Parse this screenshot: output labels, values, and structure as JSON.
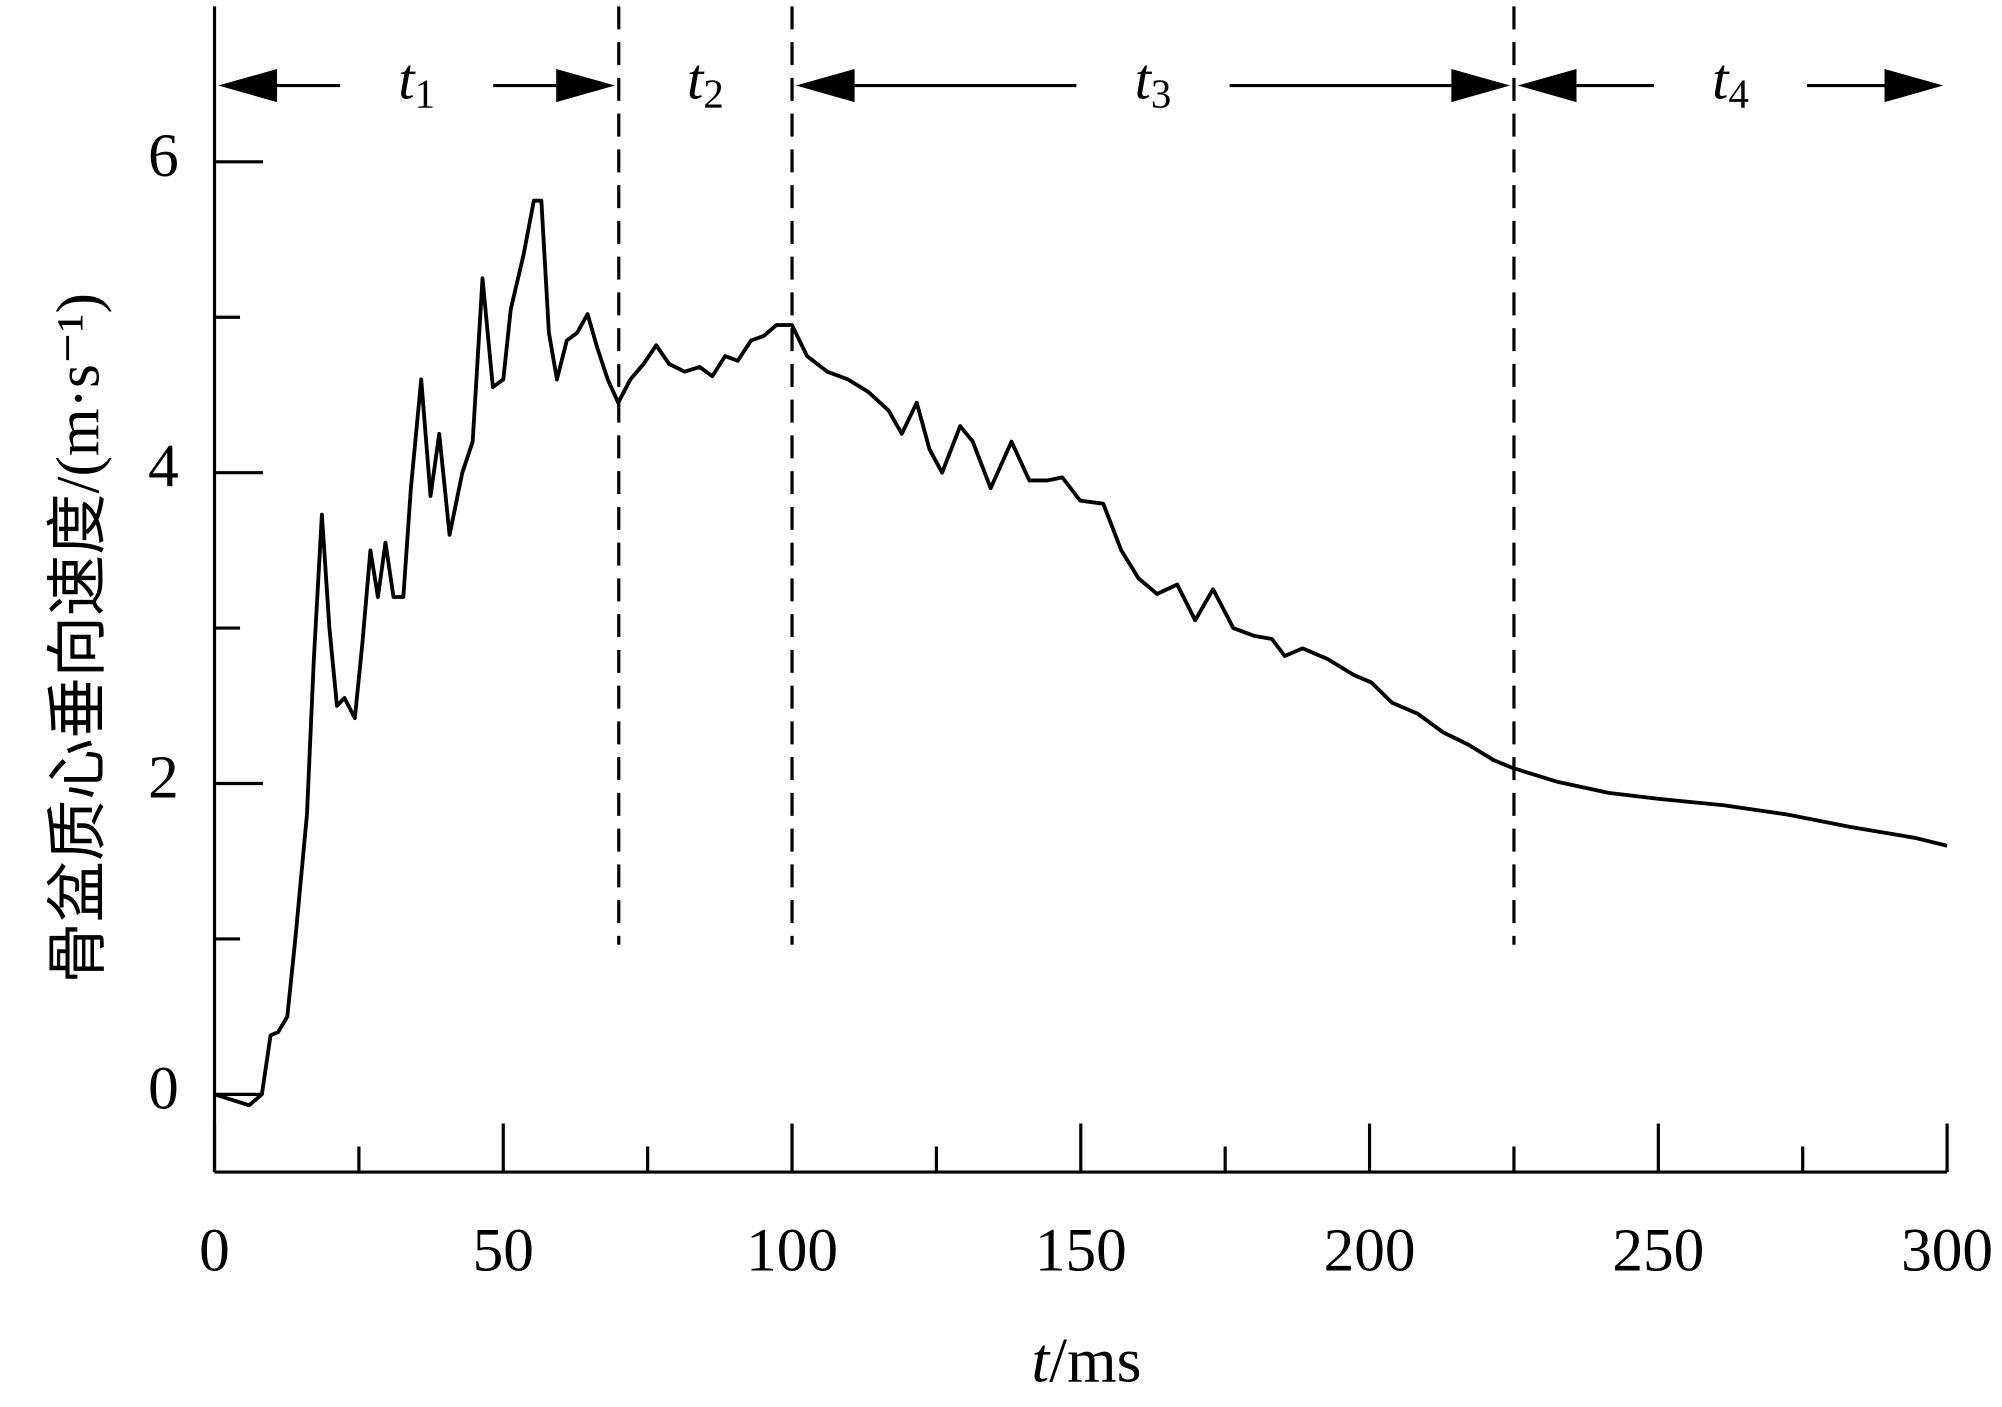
{
  "chart_data": {
    "type": "line",
    "xlabel": "t/ms",
    "ylabel": "骨盆质心垂向速度/(m·s⁻¹)",
    "x": [
      0,
      6,
      8.2,
      9.7,
      11,
      12.6,
      14,
      16,
      17.2,
      18.6,
      19.9,
      21.2,
      22.5,
      24.3,
      25.6,
      27,
      28.3,
      29.6,
      31,
      32.7,
      34,
      35.8,
      37.4,
      38.9,
      40.7,
      42.9,
      44.7,
      46.4,
      48.2,
      50,
      51.3,
      53.5,
      55.3,
      56.6,
      57.9,
      59.3,
      61,
      62.8,
      64.6,
      66.3,
      68.1,
      69.9,
      72,
      74.3,
      76.5,
      78.7,
      81.4,
      84,
      86.2,
      88.4,
      90.6,
      92.9,
      95.1,
      97.3,
      100,
      102.6,
      106.1,
      109.7,
      113.2,
      116.7,
      119,
      121.6,
      123.8,
      126,
      129.1,
      131.3,
      134.4,
      138,
      141.1,
      144.2,
      146.8,
      149.9,
      153.9,
      157,
      160,
      163.2,
      166.7,
      169.8,
      172.9,
      176.4,
      180,
      183.1,
      185.3,
      188.4,
      192.8,
      197.2,
      200.3,
      203.9,
      208.3,
      212.7,
      217.1,
      221.5,
      224.8,
      232.6,
      241.4,
      250.3,
      261.3,
      272.4,
      283.4,
      294.5,
      300
    ],
    "series": [
      {
        "name": null,
        "color": "#000000",
        "values": [
          0,
          -0.07,
          0,
          0.38,
          0.4,
          0.5,
          1.0,
          1.8,
          2.8,
          3.73,
          3.0,
          2.5,
          2.55,
          2.42,
          2.9,
          3.5,
          3.2,
          3.55,
          3.2,
          3.2,
          3.9,
          4.6,
          3.85,
          4.25,
          3.6,
          4.0,
          4.2,
          5.25,
          4.55,
          4.6,
          5.05,
          5.4,
          5.75,
          5.75,
          4.9,
          4.6,
          4.85,
          4.9,
          5.02,
          4.8,
          4.6,
          4.45,
          4.6,
          4.7,
          4.82,
          4.7,
          4.65,
          4.68,
          4.62,
          4.75,
          4.72,
          4.85,
          4.88,
          4.95,
          4.95,
          4.75,
          4.65,
          4.6,
          4.52,
          4.4,
          4.25,
          4.45,
          4.15,
          4.0,
          4.3,
          4.2,
          3.9,
          4.2,
          3.95,
          3.95,
          3.97,
          3.82,
          3.8,
          3.5,
          3.32,
          3.22,
          3.28,
          3.05,
          3.25,
          3.0,
          2.95,
          2.93,
          2.82,
          2.87,
          2.8,
          2.7,
          2.65,
          2.52,
          2.45,
          2.33,
          2.25,
          2.15,
          2.1,
          2.01,
          1.94,
          1.9,
          1.86,
          1.8,
          1.72,
          1.65,
          1.6
        ]
      }
    ],
    "xlim": [
      0,
      300
    ],
    "xticks": [
      0,
      50,
      100,
      150,
      200,
      250,
      300
    ],
    "xminor_ticks": [
      25,
      75,
      125,
      175,
      225,
      275
    ],
    "ylim": [
      -0.5,
      7
    ],
    "yticks": [
      0,
      2,
      4,
      6
    ],
    "yminor_ticks": [
      1,
      3,
      5
    ],
    "periods": [
      {
        "label": "t",
        "sub": "1",
        "start": 0,
        "end": 70
      },
      {
        "label": "t",
        "sub": "2",
        "start": 70,
        "end": 100
      },
      {
        "label": "t",
        "sub": "3",
        "start": 100,
        "end": 225
      },
      {
        "label": "t",
        "sub": "4",
        "start": 225,
        "end": 300
      }
    ]
  }
}
